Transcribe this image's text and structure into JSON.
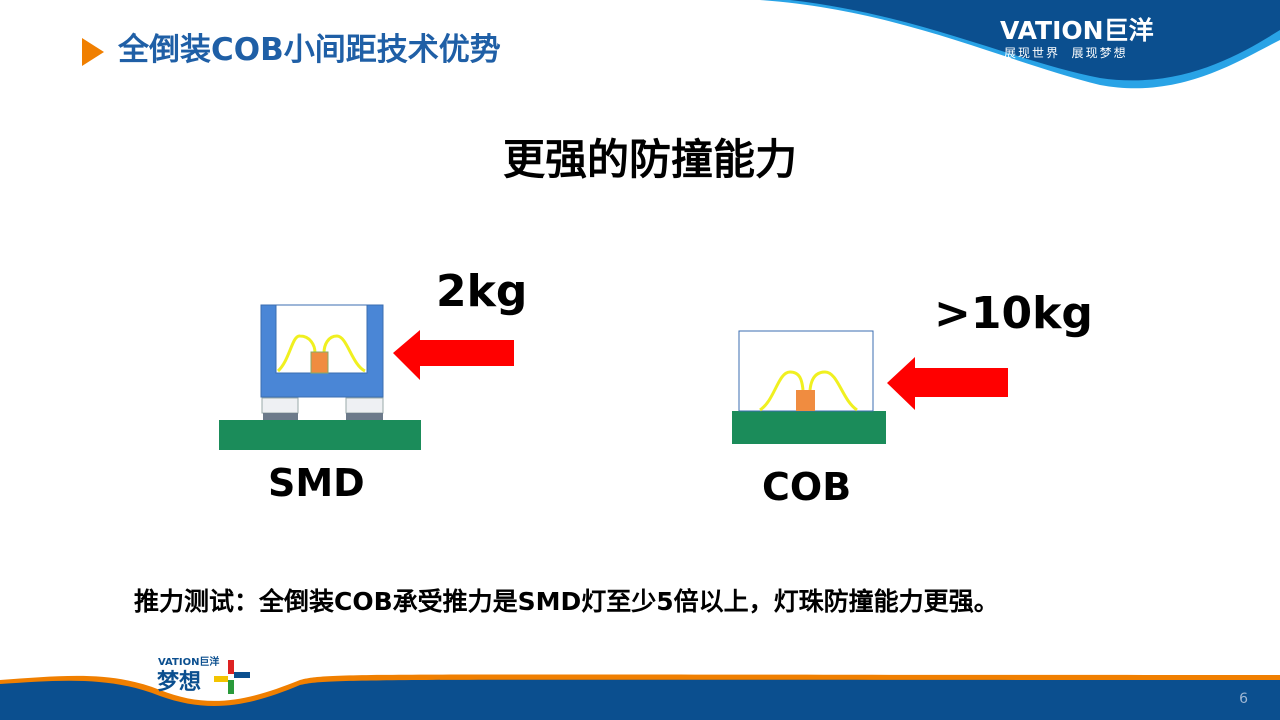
{
  "header": {
    "title": "全倒装COB小间距技术优势",
    "brand": "VATION巨洋",
    "slogan": "展现世界  展现梦想"
  },
  "slide": {
    "subtitle": "更强的防撞能力",
    "smd": {
      "label": "SMD",
      "force": "2kg"
    },
    "cob": {
      "label": "COB",
      "force": ">10kg"
    },
    "caption": "推力测试：全倒装COB承受推力是SMD灯至少5倍以上，灯珠防撞能力更强。"
  },
  "footer": {
    "brand": "VATION巨洋",
    "logo_text": "梦想",
    "page_number": "6"
  },
  "colors": {
    "primary": "#0b4f8f",
    "accent": "#f07f00",
    "title": "#1f5fa6",
    "arrow": "#ff0000",
    "board": "#1b8c5a"
  }
}
